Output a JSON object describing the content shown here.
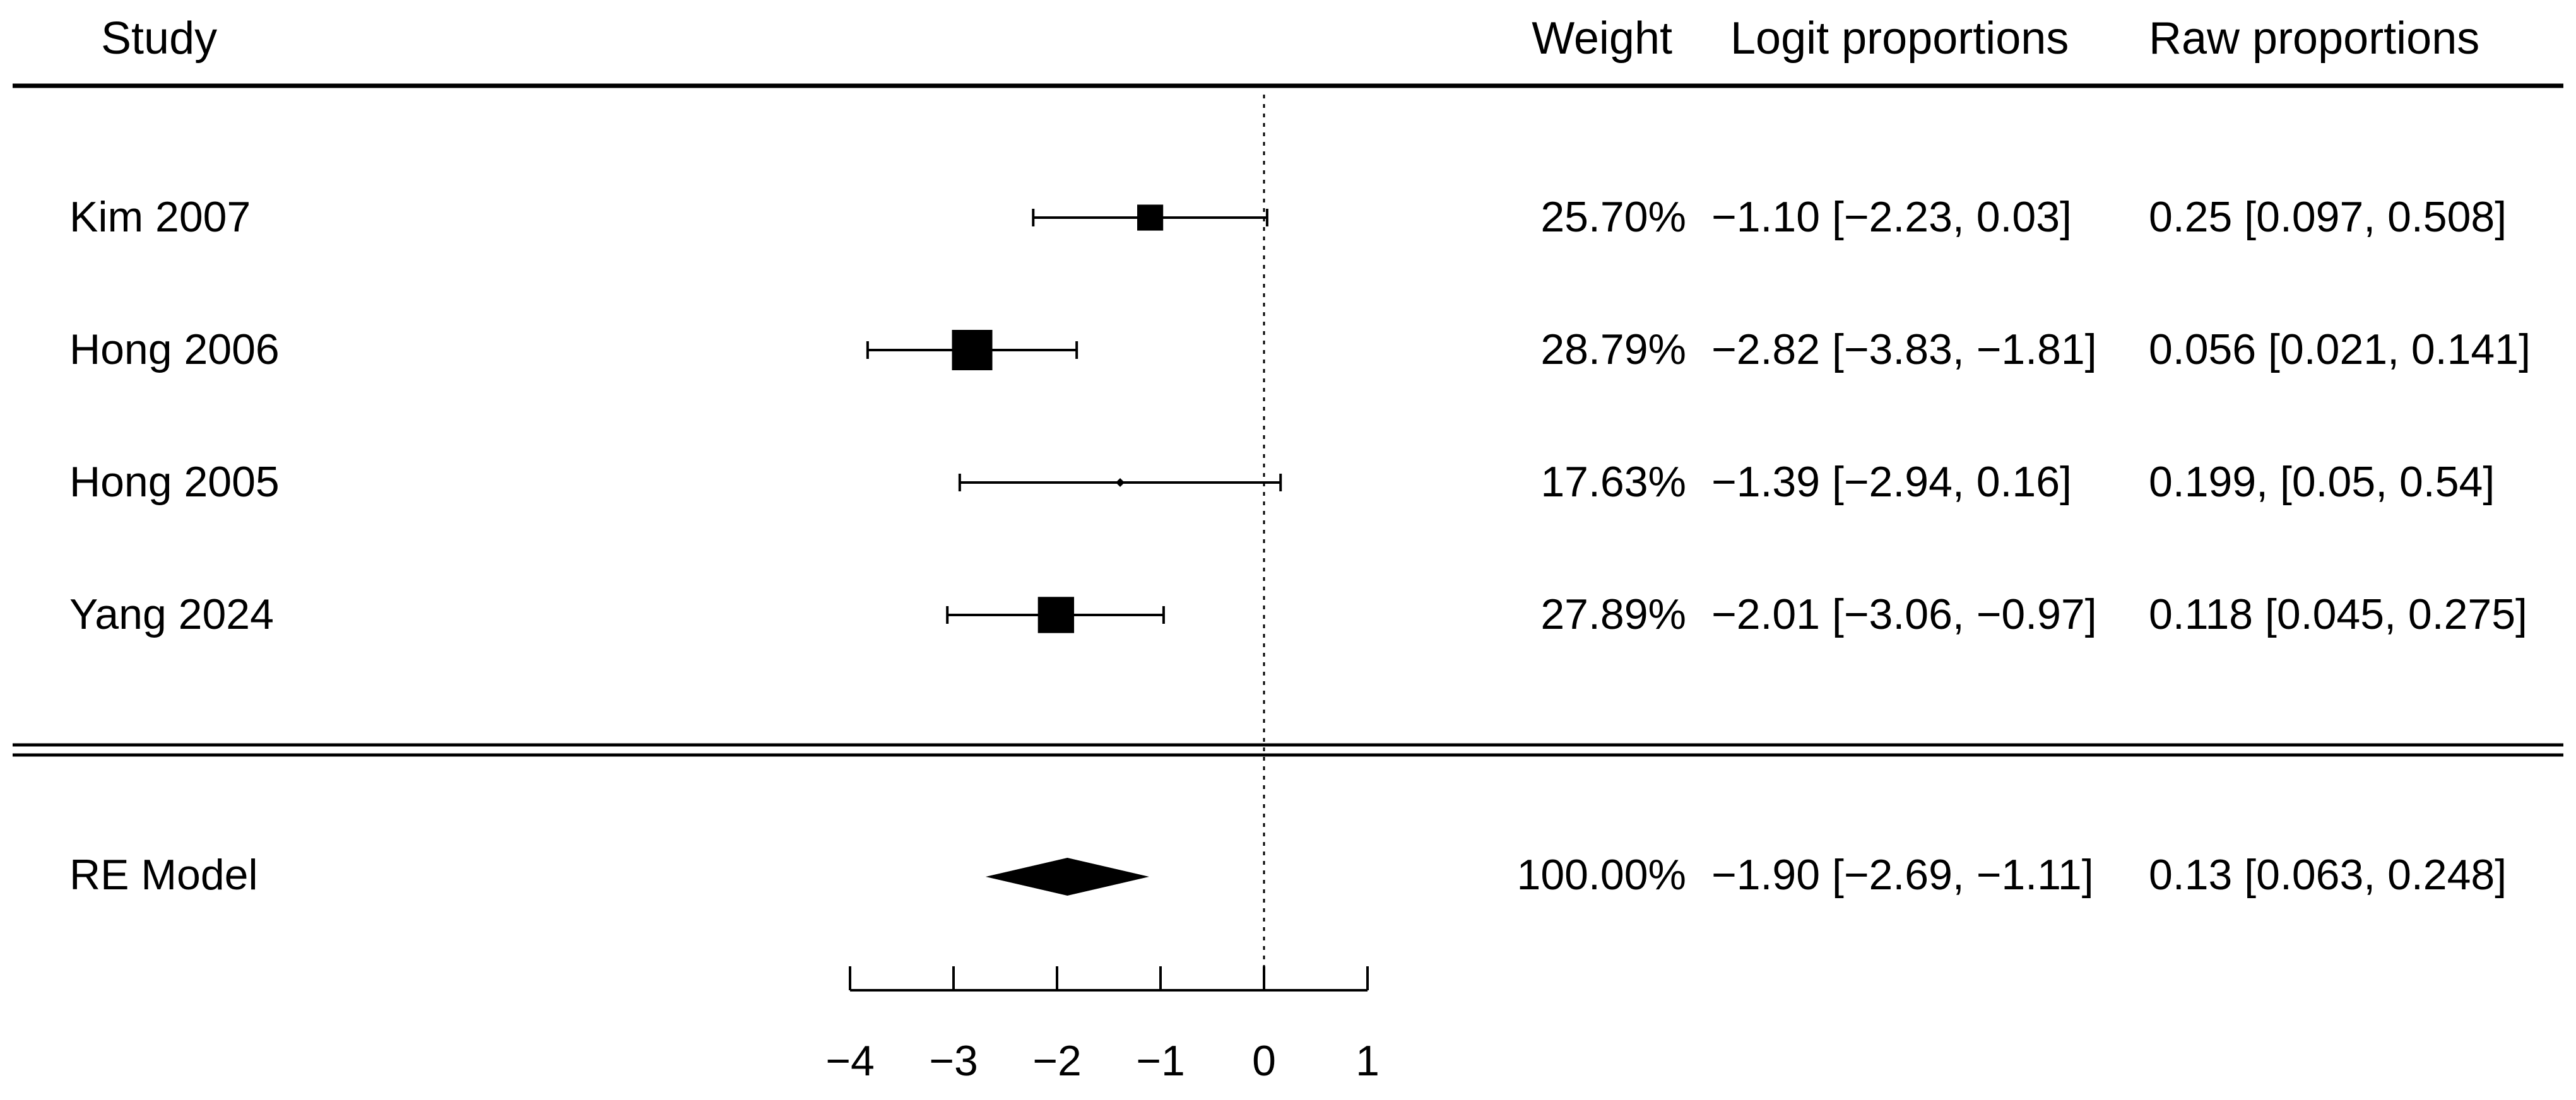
{
  "chart_data": {
    "type": "forest",
    "headers": {
      "study": "Study",
      "weight": "Weight",
      "logit": "Logit proportions",
      "raw": "Raw proportions"
    },
    "studies": [
      {
        "label": "Kim 2007",
        "estimate": -1.1,
        "ci_low": -2.23,
        "ci_high": 0.03,
        "weight": 25.7,
        "weight_text": "25.70%",
        "logit_text": "−1.10 [−2.23, 0.03]",
        "raw_text": "0.25 [0.097, 0.508]"
      },
      {
        "label": "Hong 2006",
        "estimate": -2.82,
        "ci_low": -3.83,
        "ci_high": -1.81,
        "weight": 28.79,
        "weight_text": "28.79%",
        "logit_text": "−2.82 [−3.83, −1.81]",
        "raw_text": "0.056 [0.021, 0.141]"
      },
      {
        "label": "Hong 2005",
        "estimate": -1.39,
        "ci_low": -2.94,
        "ci_high": 0.16,
        "weight": 17.63,
        "weight_text": "17.63%",
        "logit_text": "−1.39 [−2.94, 0.16]",
        "raw_text": "0.199, [0.05, 0.54]"
      },
      {
        "label": "Yang 2024",
        "estimate": -2.01,
        "ci_low": -3.06,
        "ci_high": -0.97,
        "weight": 27.89,
        "weight_text": "27.89%",
        "logit_text": "−2.01 [−3.06, −0.97]",
        "raw_text": "0.118 [0.045, 0.275]"
      }
    ],
    "summary": {
      "label": "RE Model",
      "estimate": -1.9,
      "ci_low": -2.69,
      "ci_high": -1.11,
      "weight_text": "100.00%",
      "logit_text": "−1.90 [−2.69, −1.11]",
      "raw_text": "0.13 [0.063, 0.248]"
    },
    "x_axis": {
      "ticks": [
        -4,
        -3,
        -2,
        -1,
        0,
        1
      ],
      "tick_labels": [
        "−4",
        "−3",
        "−2",
        "−1",
        "0",
        "1"
      ],
      "range": [
        -4,
        1
      ]
    },
    "reference_line": 0,
    "colors": {
      "ink": "#000000",
      "background": "#ffffff"
    }
  }
}
